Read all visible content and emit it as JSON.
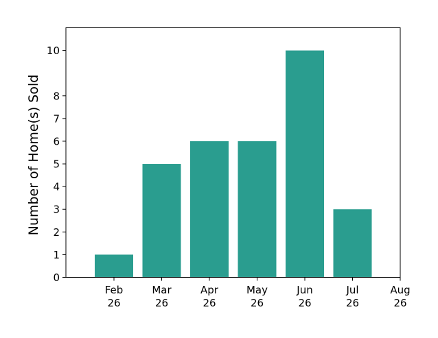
{
  "chart_data": {
    "type": "bar",
    "title": "",
    "xlabel": "",
    "ylabel": "Number of Home(s) Sold",
    "categories": [
      "Feb 26",
      "Mar 26",
      "Apr 26",
      "May 26",
      "Jun 26",
      "Jul 26"
    ],
    "values": [
      1,
      5,
      6,
      6,
      10,
      3
    ],
    "x_ticks": [
      {
        "month": "Feb",
        "year": "26"
      },
      {
        "month": "Mar",
        "year": "26"
      },
      {
        "month": "Apr",
        "year": "26"
      },
      {
        "month": "May",
        "year": "26"
      },
      {
        "month": "Jun",
        "year": "26"
      },
      {
        "month": "Jul",
        "year": "26"
      },
      {
        "month": "Aug",
        "year": "26"
      }
    ],
    "y_ticks": [
      0,
      1,
      2,
      3,
      4,
      5,
      6,
      7,
      8,
      10
    ],
    "ylim": [
      0,
      11
    ],
    "grid": false,
    "legend": "none",
    "bar_color": "#2a9d8f"
  }
}
